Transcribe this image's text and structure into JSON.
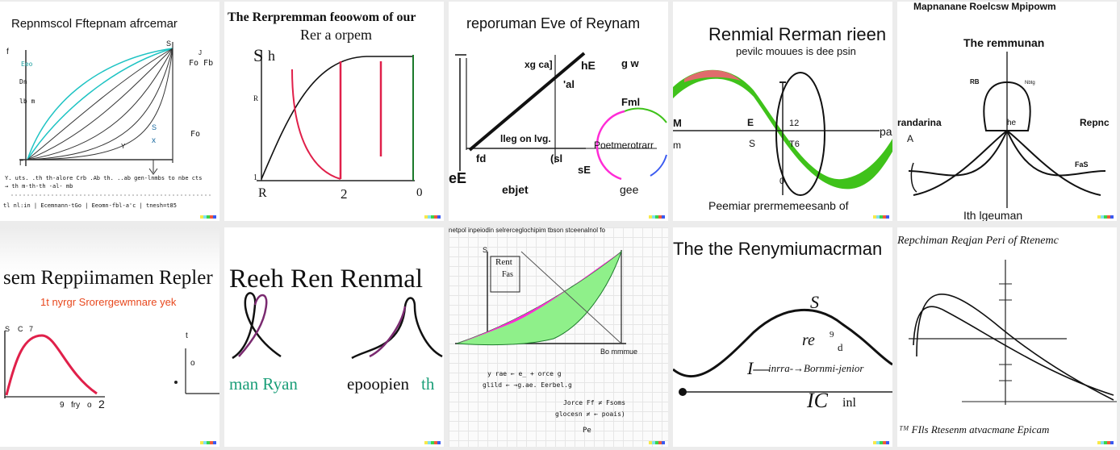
{
  "tiles": [
    {
      "title": "Repnmscol Fftepnam afrcemar",
      "labels": [
        "Eeo",
        "lb m",
        "Dn",
        "S",
        "x",
        "Fo Fb",
        "Fo",
        "S",
        "f",
        "Y",
        "J",
        "Γ"
      ],
      "notes": [
        "Y. uts. .th th-alore Crb .Ab th. ..ab gen-lnmbs to nbe cts",
        "→ th m-th-th -al- mb",
        "tl nl:in  |  Ecemnann-tGo  |  Eeomn-fbl-a'c  |  tnesh=t85"
      ]
    },
    {
      "title": "The Rerpremman feoowom of our",
      "subtitle": "Rer a orpem",
      "labels": [
        "S",
        "h",
        "R",
        "1",
        "R",
        "2",
        "0"
      ]
    },
    {
      "title": "reporuman Eve of Reynam",
      "labels": [
        "xg ca]",
        "hE",
        "g w",
        "Fml",
        "lleg on lvg.",
        "Poetmerotrarr",
        "fd",
        "(sl",
        "sE",
        "eE",
        "ebjet",
        "gee",
        "'al"
      ]
    },
    {
      "title": "Renmial Rerman rieen",
      "subtitle": "pevilc mouues is dee psin",
      "labels": [
        "M",
        "m",
        "S",
        "12",
        "T6",
        "0",
        "E",
        "pa"
      ],
      "caption": "Peemiar prermemeesanb of"
    },
    {
      "title": "Mapnanane Roelcsw Mpipowm",
      "subtitle": "The remmunan",
      "labels": [
        "randarina",
        "Repnc",
        "he",
        "FaS",
        "A",
        "RB",
        "Nbtg"
      ],
      "caption": "Ith lgeuman"
    },
    {
      "title": "sem Reppiimamen Repler",
      "subtitle": "1t nyrgr Srorergewmnare yek",
      "labels": [
        "S",
        "C",
        "7",
        "t",
        "o",
        "9",
        "fry",
        "o",
        "2"
      ]
    },
    {
      "title": "Reeh Ren Renmal",
      "labels": [
        "man Ryan",
        "epoopien",
        "th"
      ]
    },
    {
      "title": "netpol inpeiodin selrerceglochipim tbson stceenalnol fo",
      "labels": [
        "S",
        "Rent",
        "Fas",
        "Bo mmmue"
      ],
      "notes": [
        "y rae ← e_ + orce g",
        "glild ← →g.ae. Eerbel.g",
        "Jorce Ff ≠ Fsoms",
        "glocesn ≠ ← poais)",
        "Pe"
      ]
    },
    {
      "title": "The the Renymiumacrman",
      "labels": [
        "S",
        "re",
        "9",
        "d",
        "I—",
        "inrra-→Bornmi-jenior",
        "IC",
        "inl"
      ]
    },
    {
      "title": "Repchiman Reqjan Peri of Rtenemc",
      "caption": "ᵀᴹ FIls Rtesenm atvacmane Epicam"
    }
  ],
  "colors": {
    "teal": "#1ec3c3",
    "red": "#e0204a",
    "green": "#3fc21a",
    "magenta": "#ff2bd6",
    "lightgreen": "#8ff08a",
    "darkred": "#b3202f",
    "purple": "#7a2a70",
    "tealtext": "#1a9e78",
    "orange": "#e8481e"
  }
}
